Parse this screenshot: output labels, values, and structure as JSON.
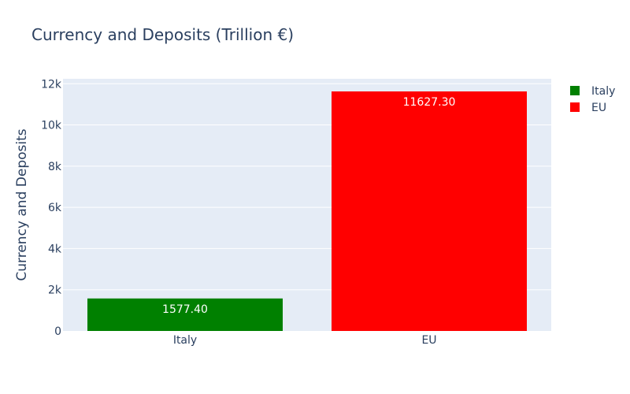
{
  "chart_data": {
    "type": "bar",
    "title": "Currency and Deposits (Trillion €)",
    "xlabel": "",
    "ylabel": "Currency and Deposits",
    "categories": [
      "Italy",
      "EU"
    ],
    "values": [
      1577.4,
      11627.3
    ],
    "value_labels": [
      "1577.40",
      "11627.30"
    ],
    "colors": [
      "#008000",
      "#ff0000"
    ],
    "ylim": [
      0,
      12240
    ],
    "yticks": [
      0,
      2000,
      4000,
      6000,
      8000,
      10000,
      12000
    ],
    "ytick_labels": [
      "0",
      "2k",
      "4k",
      "6k",
      "8k",
      "10k",
      "12k"
    ],
    "legend": {
      "placement": "top-right",
      "entries": [
        {
          "label": "Italy",
          "color": "#008000"
        },
        {
          "label": "EU",
          "color": "#ff0000"
        }
      ]
    },
    "grid": true,
    "plot_background": "#e5ecf6"
  }
}
